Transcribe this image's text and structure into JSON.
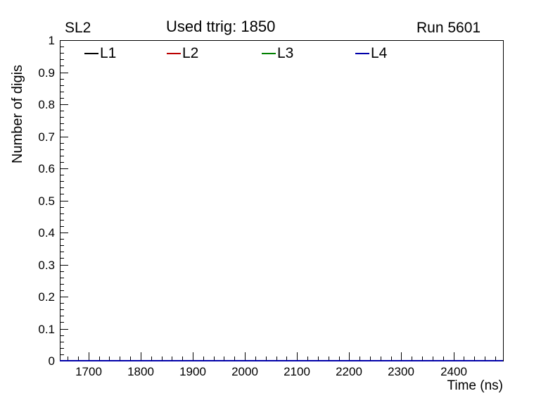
{
  "header": {
    "left_label": "SL2",
    "center_label": "Used ttrig: 1850",
    "right_label": "Run 5601"
  },
  "legend": {
    "entries": [
      {
        "label": "L1",
        "color": "#000000"
      },
      {
        "label": "L2",
        "color": "#bb0000"
      },
      {
        "label": "L3",
        "color": "#008000"
      },
      {
        "label": "L4",
        "color": "#0000aa"
      }
    ]
  },
  "chart_data": {
    "type": "line",
    "title": "Used ttrig: 1850",
    "annotations": {
      "top_left": "SL2",
      "top_right": "Run 5601"
    },
    "xlabel": "Time (ns)",
    "ylabel": "Number of digis",
    "xlim": [
      1645,
      2495
    ],
    "ylim": [
      0,
      1
    ],
    "x_major_ticks": [
      1700,
      1800,
      1900,
      2000,
      2100,
      2200,
      2300,
      2400
    ],
    "x_minor_step": 20,
    "y_major_ticks": [
      0,
      0.1,
      0.2,
      0.3,
      0.4,
      0.5,
      0.6,
      0.7,
      0.8,
      0.9,
      1
    ],
    "y_minor_step": 0.02,
    "grid": false,
    "legend_position": "top-inside",
    "series": [
      {
        "name": "L1",
        "color": "#000000",
        "y_constant": 0
      },
      {
        "name": "L2",
        "color": "#bb0000",
        "y_constant": 0
      },
      {
        "name": "L3",
        "color": "#008000",
        "y_constant": 0
      },
      {
        "name": "L4",
        "color": "#0000aa",
        "y_constant": 0
      }
    ]
  }
}
